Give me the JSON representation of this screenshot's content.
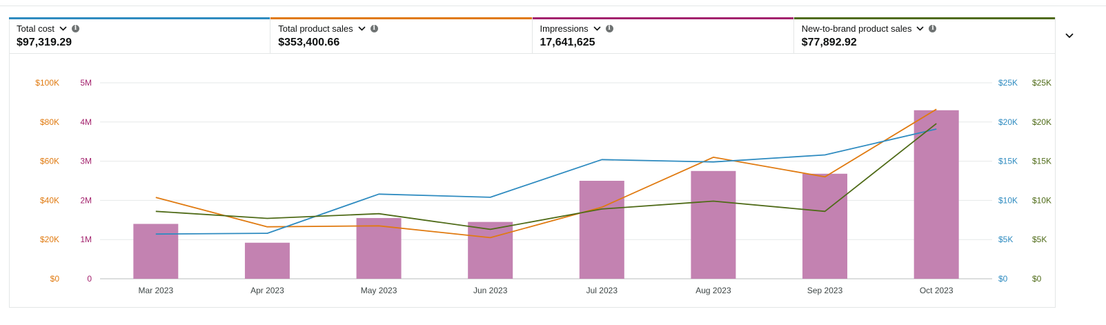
{
  "metrics": [
    {
      "label": "Total cost",
      "value": "$97,319.29",
      "color": "#2e8bc0"
    },
    {
      "label": "Total product sales",
      "value": "$353,400.66",
      "color": "#e07a10"
    },
    {
      "label": "Impressions",
      "value": "17,641,625",
      "color": "#a3226d"
    },
    {
      "label": "New-to-brand product sales",
      "value": "$77,892.92",
      "color": "#4f6b18"
    }
  ],
  "icons": {
    "dropdown": "chevron-down-icon",
    "info": "info-icon",
    "expand": "chevron-down-icon"
  },
  "info_glyph": "i",
  "chart_data": {
    "type": "bar+line",
    "categories": [
      "Mar 2023",
      "Apr 2023",
      "May 2023",
      "Jun 2023",
      "Jul 2023",
      "Aug 2023",
      "Sep 2023",
      "Oct 2023"
    ],
    "bars": {
      "name": "Impressions",
      "axis": "left-inner",
      "color": "#c382b1",
      "values": [
        1400000,
        920000,
        1550000,
        1450000,
        2500000,
        2750000,
        2680000,
        4300000
      ]
    },
    "series": [
      {
        "name": "Total product sales",
        "axis": "left-outer",
        "color": "#e07a10",
        "values": [
          41500,
          26500,
          27000,
          21000,
          36500,
          62000,
          52000,
          86500
        ]
      },
      {
        "name": "Total cost",
        "axis": "right-inner",
        "color": "#2e8bc0",
        "values": [
          5700,
          5800,
          10800,
          10400,
          15200,
          14900,
          15800,
          19100
        ]
      },
      {
        "name": "New-to-brand product sales",
        "axis": "right-outer",
        "color": "#4f6b18",
        "values": [
          8600,
          7700,
          8300,
          6300,
          8900,
          9900,
          8600,
          19800
        ]
      }
    ],
    "axes": {
      "left-outer": {
        "color": "#e07a10",
        "ylim": [
          0,
          100000
        ],
        "ticks": [
          "$0",
          "$20K",
          "$40K",
          "$60K",
          "$80K",
          "$100K"
        ]
      },
      "left-inner": {
        "color": "#a3226d",
        "ylim": [
          0,
          5000000
        ],
        "ticks": [
          "0",
          "1M",
          "2M",
          "3M",
          "4M",
          "5M"
        ]
      },
      "right-inner": {
        "color": "#2e8bc0",
        "ylim": [
          0,
          25000
        ],
        "ticks": [
          "$0",
          "$5K",
          "$10K",
          "$15K",
          "$20K",
          "$25K"
        ]
      },
      "right-outer": {
        "color": "#4f6b18",
        "ylim": [
          0,
          25000
        ],
        "ticks": [
          "$0",
          "$5K",
          "$10K",
          "$15K",
          "$20K",
          "$25K"
        ]
      }
    },
    "grid": true
  }
}
